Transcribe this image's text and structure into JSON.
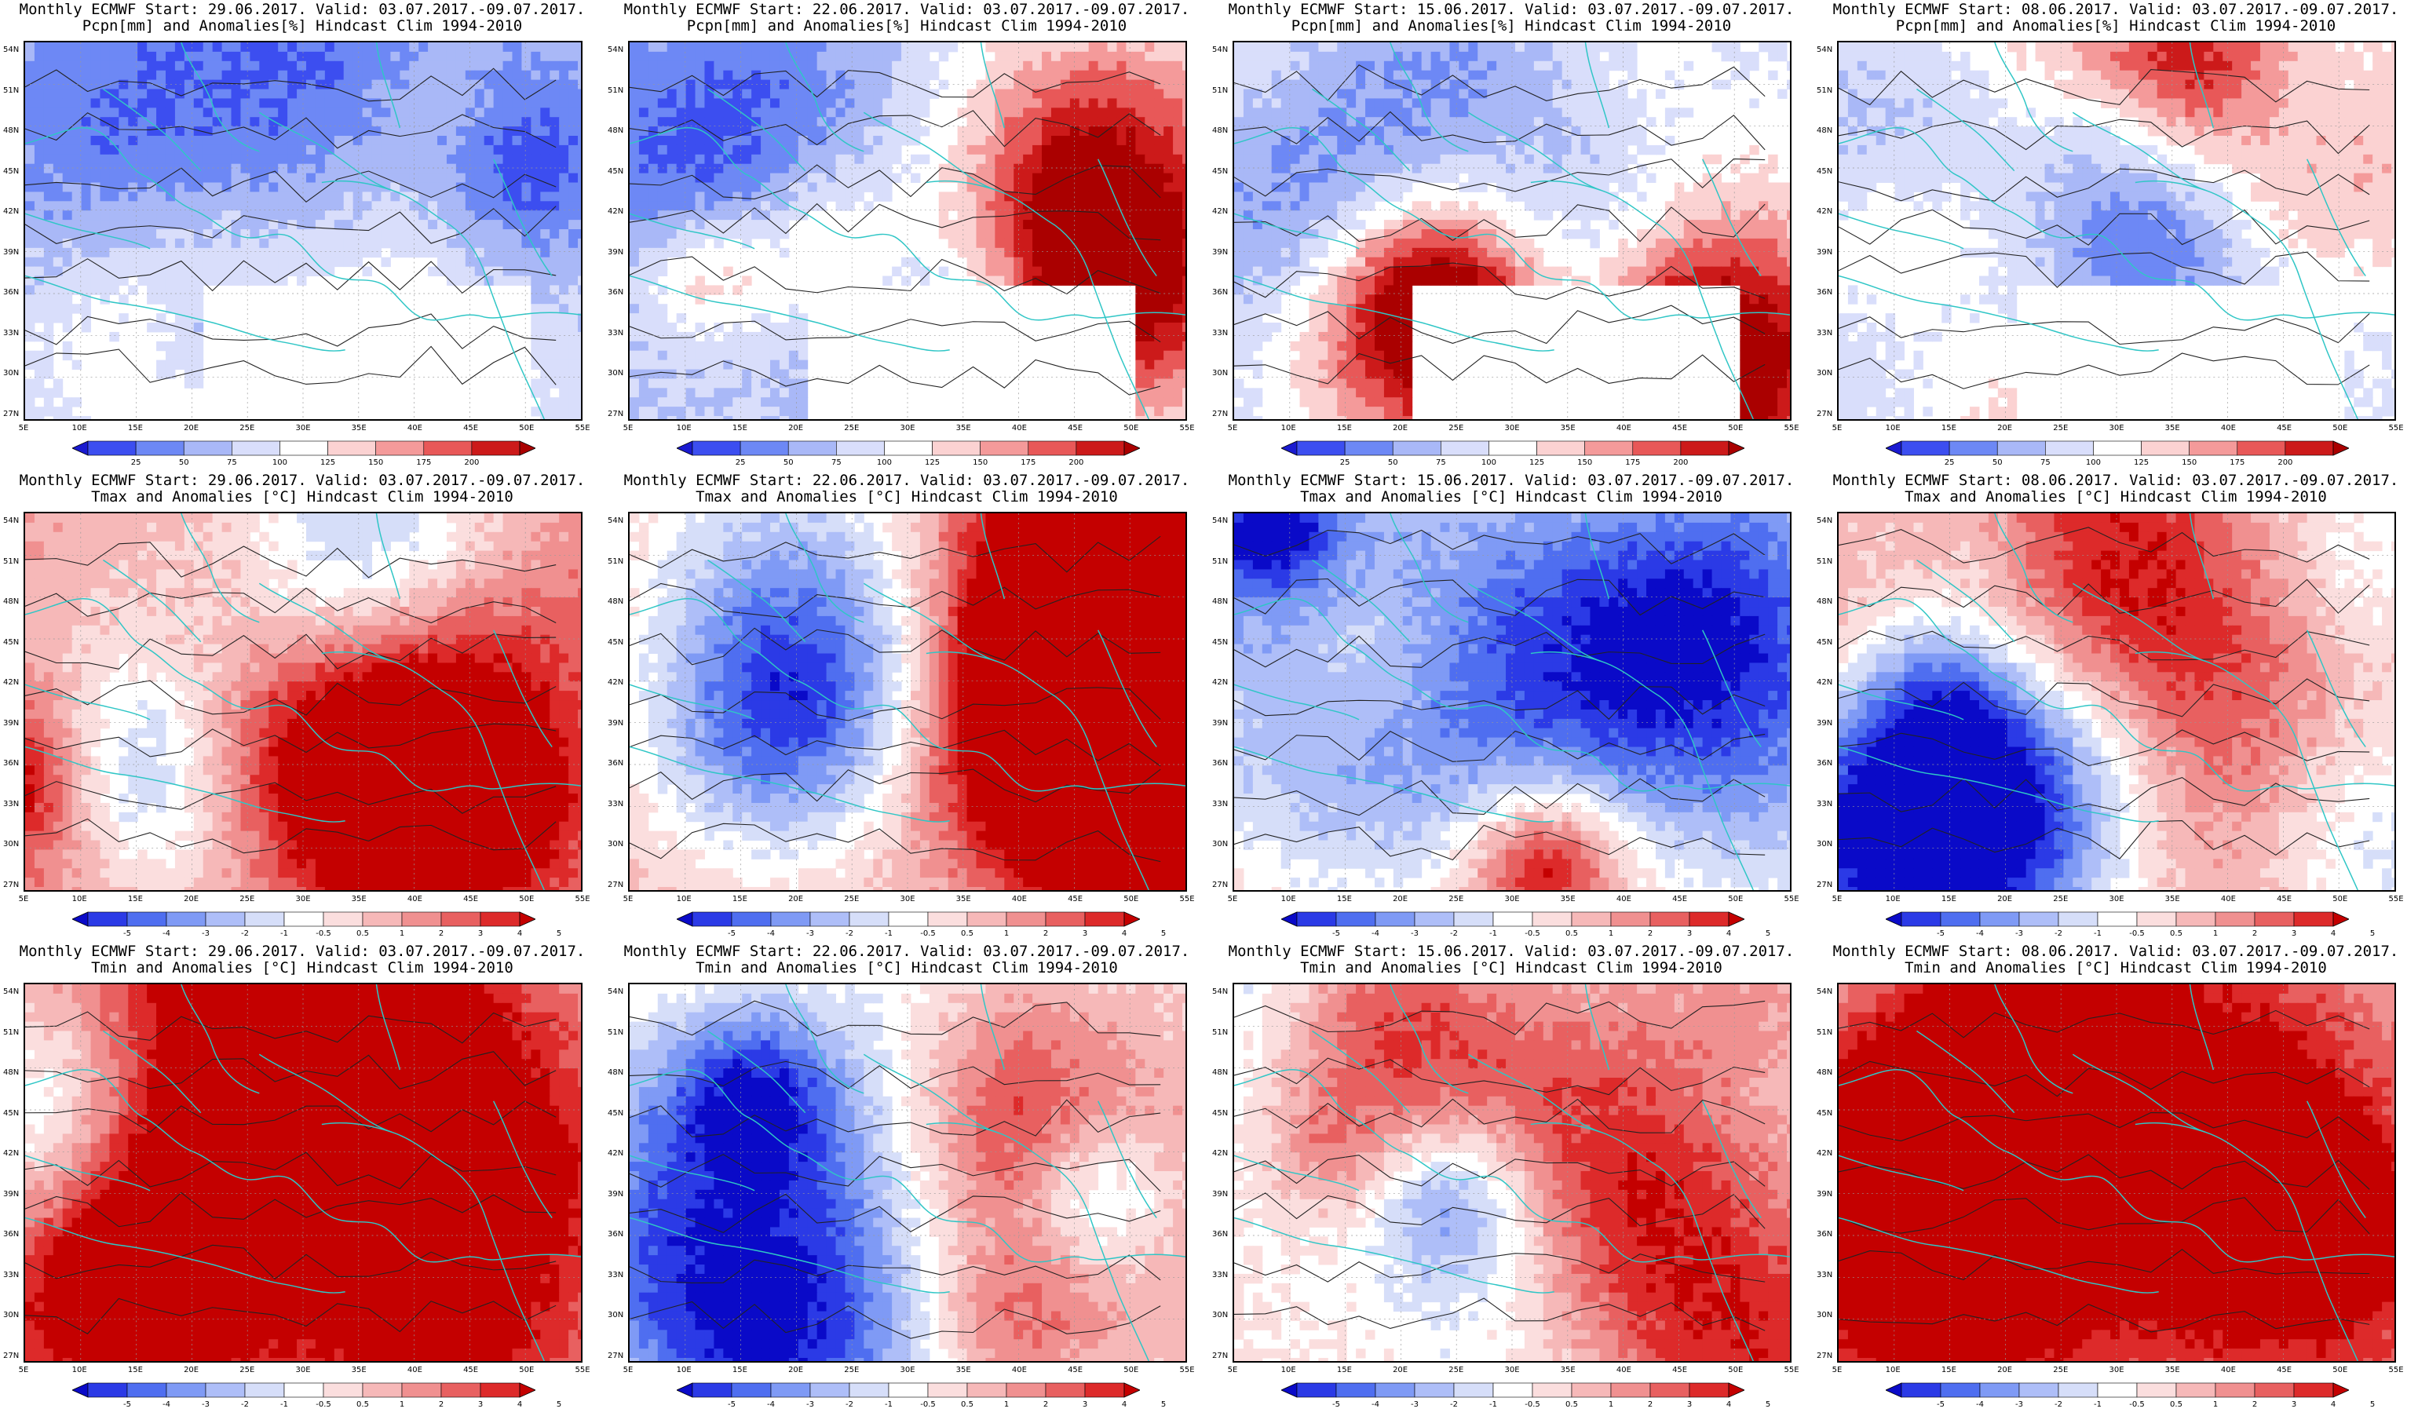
{
  "lat_labels": [
    "54N",
    "51N",
    "48N",
    "45N",
    "42N",
    "39N",
    "36N",
    "33N",
    "30N",
    "27N"
  ],
  "lon_labels": [
    "5E",
    "10E",
    "15E",
    "20E",
    "25E",
    "30E",
    "35E",
    "40E",
    "45E",
    "50E",
    "55E"
  ],
  "colorbars": {
    "precip": {
      "ticks": [
        "25",
        "50",
        "75",
        "100",
        "125",
        "150",
        "175",
        "200"
      ],
      "colors": [
        "#1a1ad0",
        "#3c4ef0",
        "#6d88f5",
        "#a9b8f7",
        "#d9defb",
        "#ffffff",
        "#fbd2d2",
        "#f49a9a",
        "#e85858",
        "#cc1a1a",
        "#aa0000"
      ]
    },
    "temp": {
      "ticks": [
        "-5",
        "-4",
        "-3",
        "-2",
        "-1",
        "-0.5",
        "0.5",
        "1",
        "2",
        "3",
        "4",
        "5"
      ],
      "colors": [
        "#0a0ac8",
        "#2b3ae6",
        "#4f6ef0",
        "#7f9af5",
        "#aebef8",
        "#d6def9",
        "#ffffff",
        "#fbdede",
        "#f6b8b8",
        "#f09090",
        "#e86060",
        "#dd2a2a",
        "#c40000"
      ]
    }
  },
  "panels": [
    {
      "row": 0,
      "col": 0,
      "line1": "Monthly ECMWF Start: 29.06.2017. Valid: 03.07.2017.-09.07.2017.",
      "line2": "Pcpn[mm] and Anomalies[%] Hindcast Clim 1994-2010",
      "kind": "precip",
      "seed": 11,
      "bias": -0.55
    },
    {
      "row": 0,
      "col": 1,
      "line1": "Monthly ECMWF Start: 22.06.2017. Valid: 03.07.2017.-09.07.2017.",
      "line2": "Pcpn[mm] and Anomalies[%] Hindcast Clim 1994-2010",
      "kind": "precip",
      "seed": 23,
      "bias": -0.45
    },
    {
      "row": 0,
      "col": 2,
      "line1": "Monthly ECMWF Start: 15.06.2017. Valid: 03.07.2017.-09.07.2017.",
      "line2": "Pcpn[mm] and Anomalies[%] Hindcast Clim 1994-2010",
      "kind": "precip",
      "seed": 37,
      "bias": -0.35
    },
    {
      "row": 0,
      "col": 3,
      "line1": "Monthly ECMWF Start: 08.06.2017. Valid: 03.07.2017.-09.07.2017.",
      "line2": "Pcpn[mm] and Anomalies[%] Hindcast Clim 1994-2010",
      "kind": "precip",
      "seed": 41,
      "bias": -0.3
    },
    {
      "row": 1,
      "col": 0,
      "line1": "Monthly ECMWF Start: 29.06.2017. Valid: 03.07.2017.-09.07.2017.",
      "line2": "Tmax and Anomalies [°C] Hindcast Clim 1994-2010",
      "kind": "temp",
      "seed": 53,
      "bias": 0.9
    },
    {
      "row": 1,
      "col": 1,
      "line1": "Monthly ECMWF Start: 22.06.2017. Valid: 03.07.2017.-09.07.2017.",
      "line2": "Tmax and Anomalies [°C] Hindcast Clim 1994-2010",
      "kind": "temp",
      "seed": 61,
      "bias": 0.8
    },
    {
      "row": 1,
      "col": 2,
      "line1": "Monthly ECMWF Start: 15.06.2017. Valid: 03.07.2017.-09.07.2017.",
      "line2": "Tmax and Anomalies [°C] Hindcast Clim 1994-2010",
      "kind": "temp",
      "seed": 71,
      "bias": 0.45
    },
    {
      "row": 1,
      "col": 3,
      "line1": "Monthly ECMWF Start: 08.06.2017. Valid: 03.07.2017.-09.07.2017.",
      "line2": "Tmax and Anomalies [°C] Hindcast Clim 1994-2010",
      "kind": "temp",
      "seed": 83,
      "bias": 0.5
    },
    {
      "row": 2,
      "col": 0,
      "line1": "Monthly ECMWF Start: 29.06.2017. Valid: 03.07.2017.-09.07.2017.",
      "line2": "Tmin and Anomalies [°C] Hindcast Clim 1994-2010",
      "kind": "temp",
      "seed": 97,
      "bias": 0.75
    },
    {
      "row": 2,
      "col": 1,
      "line1": "Monthly ECMWF Start: 22.06.2017. Valid: 03.07.2017.-09.07.2017.",
      "line2": "Tmin and Anomalies [°C] Hindcast Clim 1994-2010",
      "kind": "temp",
      "seed": 101,
      "bias": 0.6
    },
    {
      "row": 2,
      "col": 2,
      "line1": "Monthly ECMWF Start: 15.06.2017. Valid: 03.07.2017.-09.07.2017.",
      "line2": "Tmin and Anomalies [°C] Hindcast Clim 1994-2010",
      "kind": "temp",
      "seed": 113,
      "bias": 0.25
    },
    {
      "row": 2,
      "col": 3,
      "line1": "Monthly ECMWF Start: 08.06.2017. Valid: 03.07.2017.-09.07.2017.",
      "line2": "Tmin and Anomalies [°C] Hindcast Clim 1994-2010",
      "kind": "temp",
      "seed": 127,
      "bias": 0.3
    }
  ]
}
